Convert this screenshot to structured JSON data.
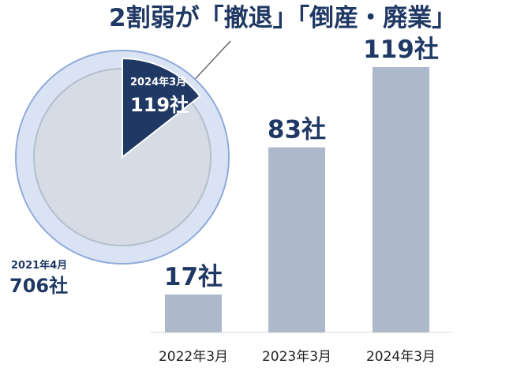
{
  "title": "2割弱が「撤退」「倒産・廃業」",
  "colors": {
    "bar": "#adb9ca",
    "pie_outer": "#dae3f3",
    "pie_outer_border": "#8faadc",
    "pie_inner": "#d6dce5",
    "pie_inner_border": "#b4bfcc",
    "pie_highlight": "#1f3864",
    "label": "#1f3864",
    "axis": "#d9d9d9"
  },
  "chart_data": [
    {
      "type": "pie",
      "slices": [
        {
          "label": "2024年3月",
          "value": 119,
          "display": "119社",
          "highlight": true
        },
        {
          "label": "2021年4月",
          "value": 706,
          "display": "706社",
          "highlight": false
        }
      ]
    },
    {
      "type": "bar",
      "categories": [
        "2022年3月",
        "2023年3月",
        "2024年3月"
      ],
      "values": [
        17,
        83,
        119
      ],
      "value_labels": [
        "17社",
        "83社",
        "119社"
      ],
      "ylim": [
        0,
        119
      ],
      "grid": false
    }
  ]
}
